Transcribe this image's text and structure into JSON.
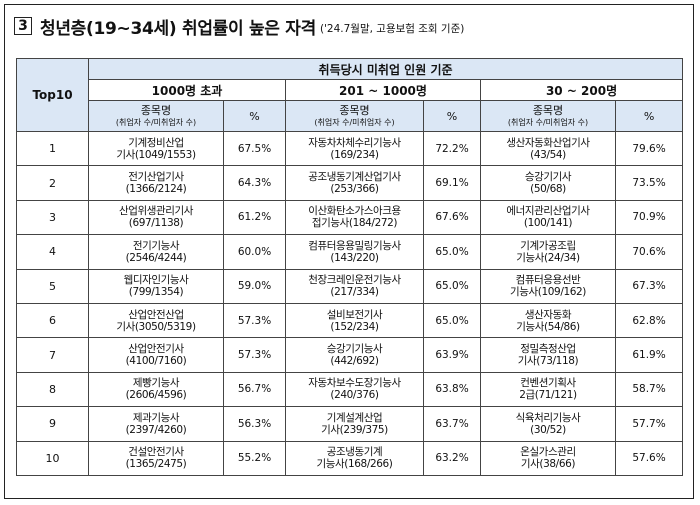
{
  "title": {
    "number": "3",
    "main": "청년층(19~34세) 취업률이 높은 자격",
    "note": "('24.7월말, 고용보험 조회 기준)"
  },
  "table": {
    "rank_header": "Top10",
    "top_header": "취득당시 미취업 인원 기준",
    "groups": [
      "1000명 초과",
      "201 ~ 1000명",
      "30 ~ 200명"
    ],
    "col_name": "종목명",
    "col_name_sub": "(취업자 수/미취업자 수)",
    "col_pct": "%",
    "rows": [
      {
        "rank": "1",
        "g1": [
          "기계정비산업",
          "기사(1049/1553)"
        ],
        "p1": "67.5%",
        "g2": [
          "자동차차체수리기능사",
          "(169/234)"
        ],
        "p2": "72.2%",
        "g3": [
          "생산자동화산업기사",
          "(43/54)"
        ],
        "p3": "79.6%"
      },
      {
        "rank": "2",
        "g1": [
          "전기산업기사",
          "(1366/2124)"
        ],
        "p1": "64.3%",
        "g2": [
          "공조냉동기계산업기사",
          "(253/366)"
        ],
        "p2": "69.1%",
        "g3": [
          "승강기기사",
          "(50/68)"
        ],
        "p3": "73.5%"
      },
      {
        "rank": "3",
        "g1": [
          "산업위생관리기사",
          "(697/1138)"
        ],
        "p1": "61.2%",
        "g2": [
          "이산화탄소가스아크용",
          "접기능사(184/272)"
        ],
        "p2": "67.6%",
        "g3": [
          "에너지관리산업기사",
          "(100/141)"
        ],
        "p3": "70.9%"
      },
      {
        "rank": "4",
        "g1": [
          "전기기능사",
          "(2546/4244)"
        ],
        "p1": "60.0%",
        "g2": [
          "컴퓨터응용밀링기능사",
          "(143/220)"
        ],
        "p2": "65.0%",
        "g3": [
          "기계가공조립",
          "기능사(24/34)"
        ],
        "p3": "70.6%"
      },
      {
        "rank": "5",
        "g1": [
          "웹디자인기능사",
          "(799/1354)"
        ],
        "p1": "59.0%",
        "g2": [
          "천장크레인운전기능사",
          "(217/334)"
        ],
        "p2": "65.0%",
        "g3": [
          "컴퓨터응용선반",
          "기능사(109/162)"
        ],
        "p3": "67.3%"
      },
      {
        "rank": "6",
        "g1": [
          "산업안전산업",
          "기사(3050/5319)"
        ],
        "p1": "57.3%",
        "g2": [
          "설비보전기사",
          "(152/234)"
        ],
        "p2": "65.0%",
        "g3": [
          "생산자동화",
          "기능사(54/86)"
        ],
        "p3": "62.8%"
      },
      {
        "rank": "7",
        "g1": [
          "산업안전기사",
          "(4100/7160)"
        ],
        "p1": "57.3%",
        "g2": [
          "승강기기능사",
          "(442/692)"
        ],
        "p2": "63.9%",
        "g3": [
          "정밀측정산업",
          "기사(73/118)"
        ],
        "p3": "61.9%"
      },
      {
        "rank": "8",
        "g1": [
          "제빵기능사",
          "(2606/4596)"
        ],
        "p1": "56.7%",
        "g2": [
          "자동차보수도장기능사",
          "(240/376)"
        ],
        "p2": "63.8%",
        "g3": [
          "컨벤션기획사",
          "2급(71/121)"
        ],
        "p3": "58.7%"
      },
      {
        "rank": "9",
        "g1": [
          "제과기능사",
          "(2397/4260)"
        ],
        "p1": "56.3%",
        "g2": [
          "기계설계산업",
          "기사(239/375)"
        ],
        "p2": "63.7%",
        "g3": [
          "식육처리기능사",
          "(30/52)"
        ],
        "p3": "57.7%"
      },
      {
        "rank": "10",
        "g1": [
          "건설안전기사",
          "(1365/2475)"
        ],
        "p1": "55.2%",
        "g2": [
          "공조냉동기계",
          "기능사(168/266)"
        ],
        "p2": "63.2%",
        "g3": [
          "온실가스관리",
          "기사(38/66)"
        ],
        "p3": "57.6%"
      }
    ]
  }
}
